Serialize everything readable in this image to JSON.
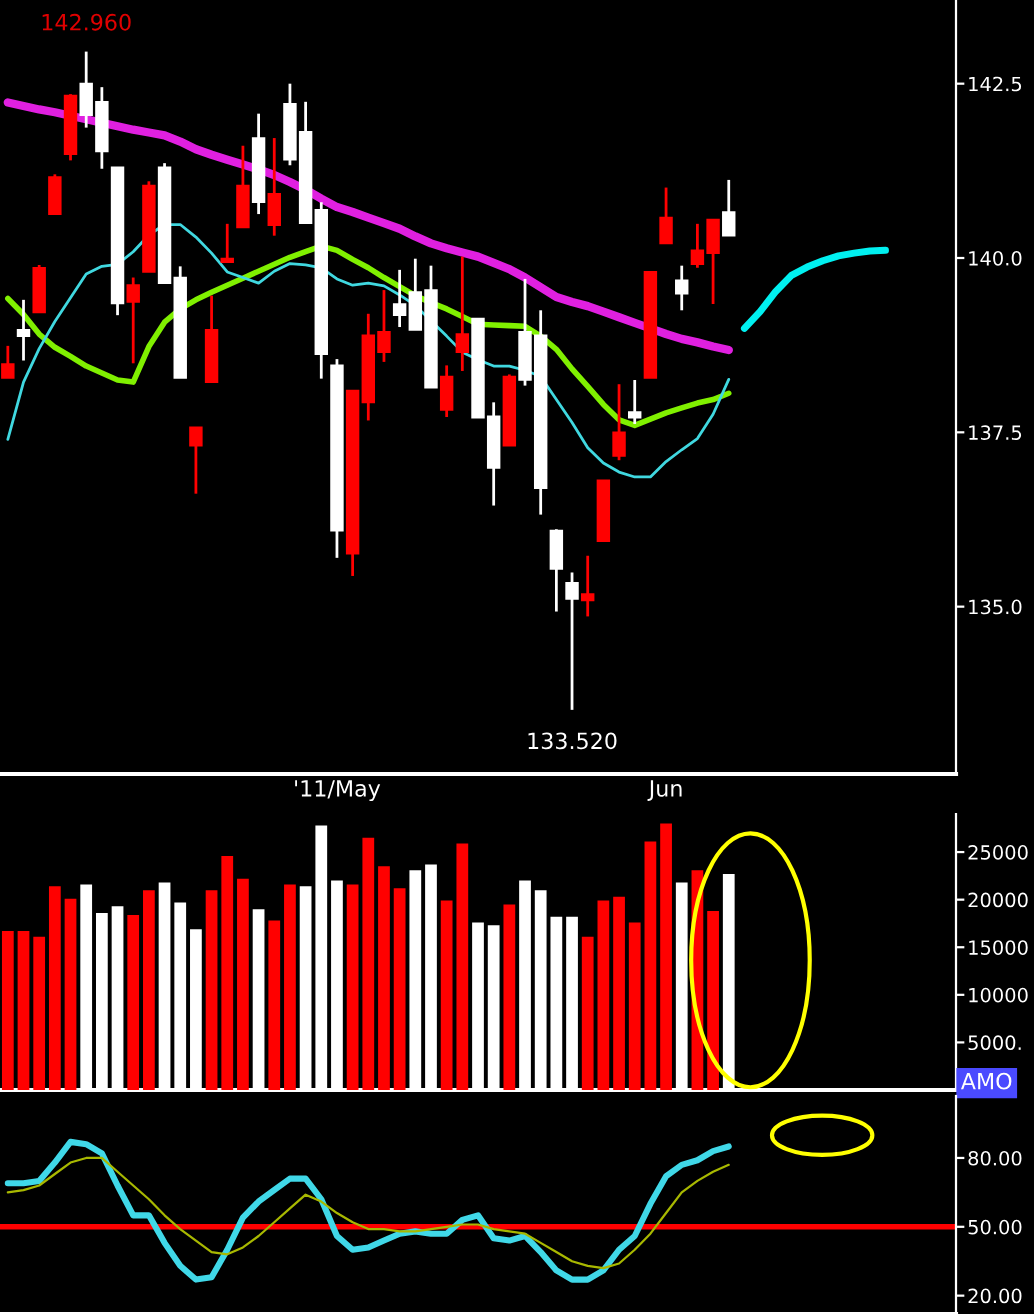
{
  "chart_data": [
    {
      "type": "candlestick",
      "categories": [
        null,
        null,
        null,
        null,
        null,
        null,
        null,
        null,
        null,
        null,
        null,
        null,
        null,
        null,
        null,
        null,
        null,
        null,
        null,
        null,
        null,
        "'11/May",
        null,
        null,
        null,
        null,
        null,
        null,
        null,
        null,
        null,
        null,
        null,
        null,
        null,
        null,
        null,
        null,
        null,
        null,
        null,
        null,
        "Jun",
        null,
        null,
        null,
        null,
        null,
        null,
        null,
        null,
        null,
        null,
        null,
        null,
        null,
        null,
        null,
        null,
        null,
        null
      ],
      "ohlc": [
        [
          138.48,
          138.74,
          138.28,
          138.28
        ],
        [
          138.88,
          139.4,
          138.53,
          138.97
        ],
        [
          139.86,
          139.9,
          139.22,
          139.22
        ],
        [
          141.16,
          141.2,
          140.63,
          140.63
        ],
        [
          142.33,
          142.35,
          141.4,
          141.49
        ],
        [
          142.05,
          142.96,
          141.87,
          142.5
        ],
        [
          141.53,
          142.45,
          141.28,
          142.24
        ],
        [
          139.35,
          141.3,
          139.18,
          141.3
        ],
        [
          139.61,
          139.72,
          138.49,
          139.37
        ],
        [
          141.04,
          141.1,
          139.8,
          139.8
        ],
        [
          139.64,
          141.36,
          139.64,
          141.3
        ],
        [
          138.28,
          139.88,
          138.28,
          139.72
        ],
        [
          137.57,
          137.57,
          136.62,
          137.31
        ],
        [
          138.97,
          139.46,
          138.22,
          138.22
        ],
        [
          139.99,
          140.49,
          139.94,
          139.94
        ],
        [
          141.04,
          141.61,
          140.44,
          140.44
        ],
        [
          140.8,
          142.07,
          140.63,
          141.72
        ],
        [
          140.92,
          141.72,
          140.32,
          140.47
        ],
        [
          141.41,
          142.5,
          141.33,
          142.21
        ],
        [
          140.5,
          142.24,
          140.5,
          141.81
        ],
        [
          138.62,
          140.8,
          138.27,
          140.69
        ],
        [
          136.09,
          138.55,
          135.7,
          138.46
        ],
        [
          138.1,
          138.1,
          135.44,
          135.76
        ],
        [
          138.89,
          139.2,
          137.67,
          137.93
        ],
        [
          138.94,
          139.54,
          138.51,
          138.65
        ],
        [
          139.18,
          139.83,
          139.01,
          139.34
        ],
        [
          138.97,
          139.99,
          138.97,
          139.51
        ],
        [
          138.14,
          139.89,
          138.14,
          139.54
        ],
        [
          138.3,
          138.46,
          137.72,
          137.82
        ],
        [
          138.91,
          140.02,
          138.38,
          138.65
        ],
        [
          137.71,
          139.13,
          137.71,
          139.13
        ],
        [
          136.99,
          137.93,
          136.45,
          137.73
        ],
        [
          138.3,
          138.33,
          137.31,
          137.31
        ],
        [
          138.25,
          139.7,
          138.17,
          138.94
        ],
        [
          136.7,
          139.25,
          136.32,
          138.89
        ],
        [
          135.54,
          136.11,
          134.93,
          136.09
        ],
        [
          135.11,
          135.49,
          133.52,
          135.34
        ],
        [
          135.18,
          135.73,
          134.86,
          135.09
        ],
        [
          136.81,
          136.81,
          135.94,
          135.94
        ],
        [
          137.5,
          138.19,
          137.1,
          137.16
        ],
        [
          137.71,
          138.25,
          137.62,
          137.79
        ],
        [
          139.8,
          139.8,
          138.28,
          138.28
        ],
        [
          140.58,
          141.01,
          140.21,
          140.21
        ],
        [
          139.49,
          139.89,
          139.25,
          139.68
        ],
        [
          140.11,
          140.49,
          139.86,
          139.91
        ],
        [
          140.55,
          140.55,
          139.34,
          140.07
        ],
        [
          140.32,
          141.12,
          140.32,
          140.66
        ],
        null,
        null,
        null,
        null,
        null,
        null,
        null,
        null,
        null,
        null,
        null,
        null,
        null,
        null
      ],
      "colors": [
        "#ff0000",
        "#ffffff",
        "#ff0000",
        "#ff0000",
        "#ff0000",
        "#ffffff",
        "#ffffff",
        "#ffffff",
        "#ff0000",
        "#ff0000",
        "#ffffff",
        "#ffffff",
        "#ff0000",
        "#ff0000",
        "#ff0000",
        "#ff0000",
        "#ffffff",
        "#ff0000",
        "#ffffff",
        "#ffffff",
        "#ffffff",
        "#ffffff",
        "#ff0000",
        "#ff0000",
        "#ff0000",
        "#ffffff",
        "#ffffff",
        "#ffffff",
        "#ff0000",
        "#ff0000",
        "#ffffff",
        "#ffffff",
        "#ff0000",
        "#ffffff",
        "#ffffff",
        "#ffffff",
        "#ffffff",
        "#ff0000",
        "#ff0000",
        "#ff0000",
        "#ffffff",
        "#ff0000",
        "#ff0000",
        "#ffffff",
        "#ff0000",
        "#ff0000",
        "#ffffff",
        null,
        null,
        null,
        null,
        null,
        null,
        null,
        null,
        null,
        null,
        null,
        null,
        null,
        null
      ],
      "series": [
        {
          "type": "line",
          "color": "#e020e0",
          "values": [
            142.23,
            142.18,
            142.13,
            142.09,
            142.04,
            141.99,
            141.94,
            141.89,
            141.84,
            141.8,
            141.76,
            141.67,
            141.56,
            141.48,
            141.41,
            141.34,
            141.27,
            141.19,
            141.09,
            140.98,
            140.85,
            140.73,
            140.66,
            140.58,
            140.5,
            140.42,
            140.31,
            140.21,
            140.14,
            140.08,
            140.02,
            139.93,
            139.84,
            139.72,
            139.58,
            139.44,
            139.37,
            139.31,
            139.23,
            139.15,
            139.07,
            138.99,
            138.91,
            138.84,
            138.79,
            138.73,
            138.68,
            null,
            null,
            null,
            null,
            null,
            null,
            null,
            null,
            null,
            null,
            null,
            null,
            null,
            null
          ]
        },
        {
          "type": "line",
          "color": "#80f000",
          "values": [
            139.42,
            139.19,
            138.91,
            138.72,
            138.59,
            138.45,
            138.35,
            138.25,
            138.22,
            138.73,
            139.08,
            139.27,
            139.4,
            139.51,
            139.61,
            139.71,
            139.81,
            139.91,
            140.01,
            140.09,
            140.17,
            140.11,
            139.98,
            139.86,
            139.72,
            139.59,
            139.46,
            139.36,
            139.27,
            139.16,
            139.05,
            139.04,
            139.03,
            139.02,
            138.88,
            138.69,
            138.41,
            138.16,
            137.9,
            137.68,
            137.6,
            137.69,
            137.78,
            137.85,
            137.92,
            137.97,
            138.06,
            null,
            null,
            null,
            null,
            null,
            null,
            null,
            null,
            null,
            null,
            null,
            null,
            null,
            null
          ]
        },
        {
          "type": "line",
          "color": "#40d8e0",
          "values": [
            137.4,
            138.22,
            138.7,
            139.09,
            139.43,
            139.77,
            139.88,
            139.91,
            140.09,
            140.33,
            140.48,
            140.48,
            140.3,
            140.07,
            139.8,
            139.72,
            139.64,
            139.81,
            139.92,
            139.9,
            139.86,
            139.7,
            139.61,
            139.64,
            139.6,
            139.47,
            139.32,
            139.1,
            138.88,
            138.65,
            138.54,
            138.45,
            138.45,
            138.39,
            138.3,
            137.97,
            137.64,
            137.28,
            137.06,
            136.93,
            136.86,
            136.86,
            137.08,
            137.25,
            137.41,
            137.76,
            138.26,
            null,
            null,
            null,
            null,
            null,
            null,
            null,
            null,
            null,
            null,
            null,
            null,
            null,
            null
          ]
        },
        {
          "type": "line",
          "color": "#00f0f0",
          "values": [
            null,
            null,
            null,
            null,
            null,
            null,
            null,
            null,
            null,
            null,
            null,
            null,
            null,
            null,
            null,
            null,
            null,
            null,
            null,
            null,
            null,
            null,
            null,
            null,
            null,
            null,
            null,
            null,
            null,
            null,
            null,
            null,
            null,
            null,
            null,
            null,
            null,
            null,
            null,
            null,
            null,
            null,
            null,
            null,
            null,
            null,
            null,
            138.99,
            139.23,
            139.52,
            139.75,
            139.87,
            139.96,
            140.03,
            140.07,
            140.1,
            140.11,
            null,
            null,
            null,
            null
          ]
        }
      ],
      "ylim": [
        132.6,
        143.7
      ],
      "yticks": [
        {
          "value": 135,
          "label": "135.0"
        },
        {
          "value": 137.5,
          "label": "137.5"
        },
        {
          "value": 140,
          "label": "140.0"
        },
        {
          "value": 142.5,
          "label": "142.5"
        }
      ],
      "annotations": [
        "142.960",
        "133.520"
      ]
    },
    {
      "type": "bar",
      "categories": [
        null,
        null,
        null,
        null,
        null,
        null,
        null,
        null,
        null,
        null,
        null,
        null,
        null,
        null,
        null,
        null,
        null,
        null,
        null,
        null,
        null,
        null,
        null,
        null,
        null,
        null,
        null,
        null,
        null,
        null,
        null,
        null,
        null,
        null,
        null,
        null,
        null,
        null,
        null,
        null,
        null,
        null,
        null,
        null,
        null,
        null,
        null,
        null,
        null,
        null,
        null,
        null,
        null,
        null,
        null,
        null,
        null,
        null,
        null,
        null,
        null
      ],
      "values": [
        16700,
        16700,
        16100,
        21400,
        20100,
        21600,
        18600,
        19300,
        18400,
        21000,
        21800,
        19700,
        16900,
        21000,
        24600,
        22200,
        19000,
        17800,
        21600,
        21400,
        27800,
        22000,
        21600,
        26500,
        23500,
        21200,
        23100,
        23700,
        19900,
        25900,
        17600,
        17300,
        19500,
        22000,
        21000,
        18200,
        18200,
        16100,
        19900,
        20300,
        17600,
        26100,
        28000,
        21800,
        23100,
        18800,
        22700,
        null,
        null,
        null,
        null,
        null,
        null,
        null,
        null,
        null,
        null,
        null,
        null,
        null,
        null
      ],
      "colors": [
        "#ff0000",
        "#ff0000",
        "#ff0000",
        "#ff0000",
        "#ff0000",
        "#ffffff",
        "#ffffff",
        "#ffffff",
        "#ff0000",
        "#ff0000",
        "#ffffff",
        "#ffffff",
        "#ffffff",
        "#ff0000",
        "#ff0000",
        "#ff0000",
        "#ffffff",
        "#ff0000",
        "#ff0000",
        "#ffffff",
        "#ffffff",
        "#ffffff",
        "#ff0000",
        "#ff0000",
        "#ff0000",
        "#ff0000",
        "#ffffff",
        "#ffffff",
        "#ff0000",
        "#ff0000",
        "#ffffff",
        "#ffffff",
        "#ff0000",
        "#ffffff",
        "#ffffff",
        "#ffffff",
        "#ffffff",
        "#ff0000",
        "#ff0000",
        "#ff0000",
        "#ff0000",
        "#ff0000",
        "#ff0000",
        "#ffffff",
        "#ff0000",
        "#ff0000",
        "#ffffff",
        null,
        null,
        null,
        null,
        null,
        null,
        null,
        null,
        null,
        null,
        null,
        null,
        null,
        null
      ],
      "ylim": [
        0,
        29000
      ],
      "yticks": [
        {
          "value": 5000,
          "label": "5000."
        },
        10000,
        15000,
        20000,
        25000
      ],
      "tick_labels": "y",
      "annotations": [
        "AMO"
      ]
    },
    {
      "type": "line",
      "categories": [
        null,
        null,
        null,
        null,
        null,
        null,
        null,
        null,
        null,
        null,
        null,
        null,
        null,
        null,
        null,
        null,
        null,
        null,
        null,
        null,
        null,
        null,
        null,
        null,
        null,
        null,
        null,
        null,
        null,
        null,
        null,
        null,
        null,
        null,
        null,
        null,
        null,
        null,
        null,
        null,
        null,
        null,
        null,
        null,
        null,
        null,
        null,
        null,
        null,
        null,
        null,
        null,
        null,
        null,
        null,
        null,
        null,
        null,
        null,
        null,
        null
      ],
      "series": [
        {
          "color": "#40d8e8",
          "values": [
            69,
            69,
            70,
            78,
            87,
            86,
            82,
            68,
            55,
            55,
            43,
            33,
            27,
            28,
            40,
            54,
            61,
            66,
            71,
            71,
            62,
            46,
            40,
            41,
            44,
            47,
            48,
            47,
            47,
            53,
            55,
            45,
            44,
            46,
            39,
            31,
            27,
            27,
            31,
            40,
            46,
            60,
            72,
            77,
            79,
            83,
            85,
            null,
            null,
            null,
            null,
            null,
            null,
            null,
            null,
            null,
            null,
            null,
            null,
            null,
            null
          ]
        },
        {
          "color": "#a8b800",
          "values": [
            65,
            66,
            68,
            73,
            78,
            80,
            80,
            74,
            68,
            62,
            55,
            49,
            44,
            39,
            38,
            41,
            46,
            52,
            58,
            64,
            61,
            56,
            52,
            49,
            49,
            48,
            48,
            49,
            50,
            51,
            51,
            49,
            48,
            47,
            43,
            39,
            35,
            33,
            32,
            34,
            40,
            47,
            56,
            65,
            70,
            74,
            77,
            null,
            null,
            null,
            null,
            null,
            null,
            null,
            null,
            null,
            null,
            null,
            null,
            null,
            null
          ]
        }
      ],
      "ylim": [
        12,
        107
      ],
      "yticks": [
        {
          "value": 20,
          "label": "20.00"
        },
        {
          "value": 50,
          "label": "50.00"
        },
        {
          "value": 80,
          "label": "80.00"
        }
      ],
      "tick_labels": "y",
      "ref_lines": [
        {
          "axis": "y",
          "value": 50,
          "color": "#ff0000"
        }
      ]
    }
  ]
}
